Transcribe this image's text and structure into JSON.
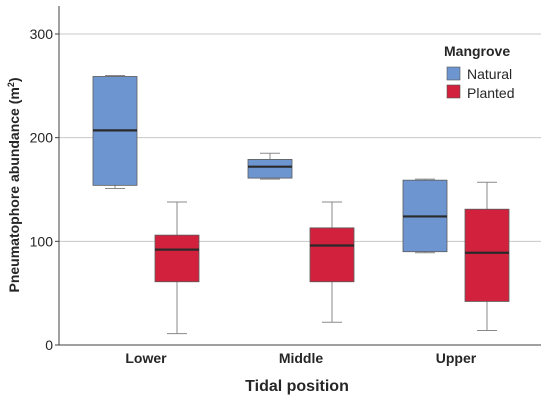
{
  "colors": {
    "natural": "#6d95d0",
    "planted": "#d1213d",
    "grid": "#c8c8c8",
    "axis": "#404040",
    "median": "#2a2a2a",
    "whisker": "#8a8a8a"
  },
  "chart_data": {
    "type": "boxplot",
    "title": "",
    "xlabel": "Tidal position",
    "ylabel_prefix": "Pneumatophore abundance (m",
    "ylabel_sup": "2",
    "ylabel_suffix": ")",
    "ylim": [
      0,
      320
    ],
    "yticks": [
      0,
      100,
      200,
      300
    ],
    "grid": true,
    "categories": [
      "Lower",
      "Middle",
      "Upper"
    ],
    "legend": {
      "title": "Mangrove",
      "position": "top-right"
    },
    "series": [
      {
        "name": "Natural",
        "color": "#6d95d0",
        "boxes": [
          {
            "min": 151,
            "q1": 154,
            "median": 207,
            "q3": 259,
            "max": 260
          },
          {
            "min": 160,
            "q1": 161,
            "median": 172,
            "q3": 179,
            "max": 185
          },
          {
            "min": 89,
            "q1": 90,
            "median": 124,
            "q3": 159,
            "max": 160
          }
        ]
      },
      {
        "name": "Planted",
        "color": "#d1213d",
        "boxes": [
          {
            "min": 11,
            "q1": 61,
            "median": 92,
            "q3": 106,
            "max": 138
          },
          {
            "min": 22,
            "q1": 61,
            "median": 96,
            "q3": 113,
            "max": 138
          },
          {
            "min": 14,
            "q1": 42,
            "median": 89,
            "q3": 131,
            "max": 157
          }
        ]
      }
    ]
  }
}
